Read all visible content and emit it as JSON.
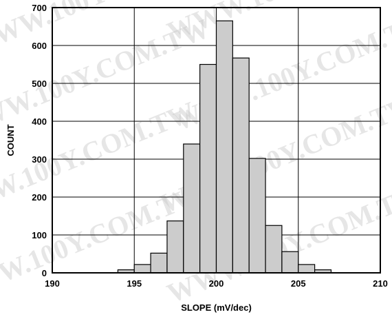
{
  "watermark": "WWW.100Y.COM.TW",
  "chart_data": {
    "type": "bar",
    "title": "",
    "xlabel": "SLOPE (mV/dec)",
    "ylabel": "COUNT",
    "xlim": [
      190,
      210
    ],
    "ylim": [
      0,
      700
    ],
    "x_ticks": [
      "190",
      "195",
      "200",
      "205",
      "210"
    ],
    "y_ticks": [
      "0",
      "100",
      "200",
      "300",
      "400",
      "500",
      "600",
      "700"
    ],
    "bin_width": 1,
    "grid": true,
    "bar_color": "#cccccc",
    "bins": [
      {
        "x0": 194,
        "x1": 195,
        "value": 8
      },
      {
        "x0": 195,
        "x1": 196,
        "value": 22
      },
      {
        "x0": 196,
        "x1": 197,
        "value": 52
      },
      {
        "x0": 197,
        "x1": 198,
        "value": 137
      },
      {
        "x0": 198,
        "x1": 199,
        "value": 340
      },
      {
        "x0": 199,
        "x1": 200,
        "value": 550
      },
      {
        "x0": 200,
        "x1": 201,
        "value": 665
      },
      {
        "x0": 201,
        "x1": 202,
        "value": 567
      },
      {
        "x0": 202,
        "x1": 203,
        "value": 302
      },
      {
        "x0": 203,
        "x1": 204,
        "value": 125
      },
      {
        "x0": 204,
        "x1": 205,
        "value": 56
      },
      {
        "x0": 205,
        "x1": 206,
        "value": 22
      },
      {
        "x0": 206,
        "x1": 207,
        "value": 8
      }
    ]
  }
}
